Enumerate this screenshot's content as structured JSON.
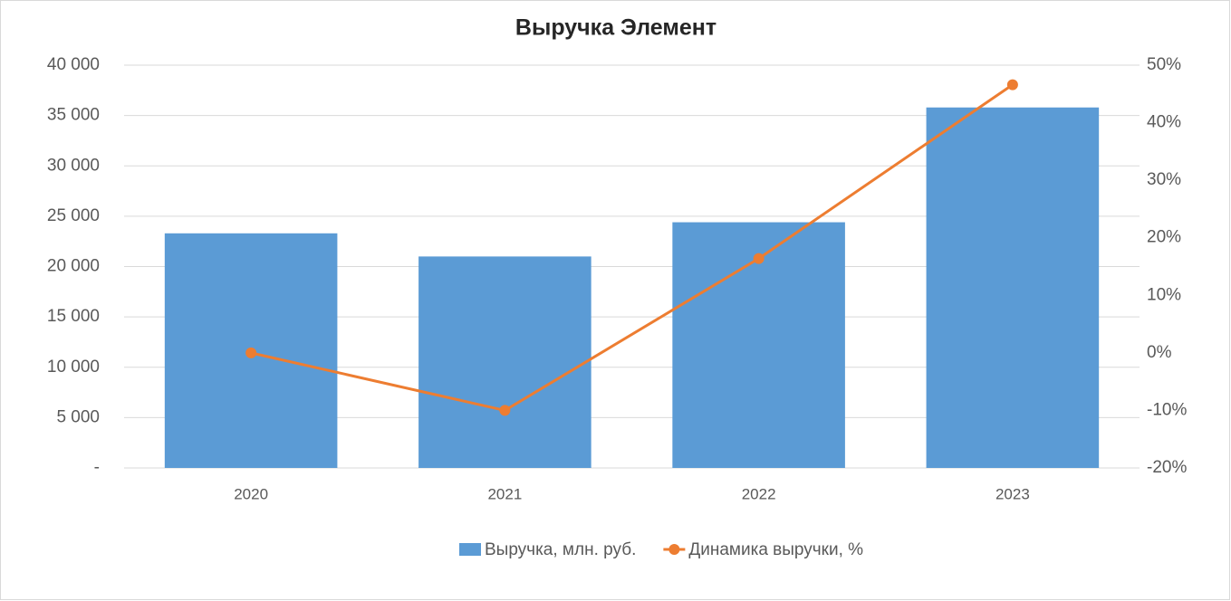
{
  "chart_data": {
    "type": "combo",
    "title": "Выручка Элемент",
    "categories": [
      "2020",
      "2021",
      "2022",
      "2023"
    ],
    "series": [
      {
        "name": "Выручка, млн. руб.",
        "type": "bar",
        "color": "#5b9bd5",
        "values": [
          23300,
          21000,
          24400,
          35800
        ]
      },
      {
        "name": "Динамика выручки, %",
        "type": "line",
        "axis": "y2",
        "color": "#ed7d31",
        "values": [
          0,
          -10,
          16.4,
          46.6
        ]
      }
    ],
    "ylim": [
      0,
      40000
    ],
    "yticks": [
      {
        "value": 0,
        "label": "-"
      },
      {
        "value": 5000,
        "label": "5 000"
      },
      {
        "value": 10000,
        "label": "10 000"
      },
      {
        "value": 15000,
        "label": "15 000"
      },
      {
        "value": 20000,
        "label": "20 000"
      },
      {
        "value": 25000,
        "label": "25 000"
      },
      {
        "value": 30000,
        "label": "30 000"
      },
      {
        "value": 35000,
        "label": "35 000"
      },
      {
        "value": 40000,
        "label": "40 000"
      }
    ],
    "y2lim": [
      -20,
      50
    ],
    "y2ticks": [
      {
        "value": -20,
        "label": "-20%"
      },
      {
        "value": -10,
        "label": "-10%"
      },
      {
        "value": 0,
        "label": "0%"
      },
      {
        "value": 10,
        "label": "10%"
      },
      {
        "value": 20,
        "label": "20%"
      },
      {
        "value": 30,
        "label": "30%"
      },
      {
        "value": 40,
        "label": "40%"
      },
      {
        "value": 50,
        "label": "50%"
      }
    ],
    "grid": true,
    "legend": "bottom"
  }
}
